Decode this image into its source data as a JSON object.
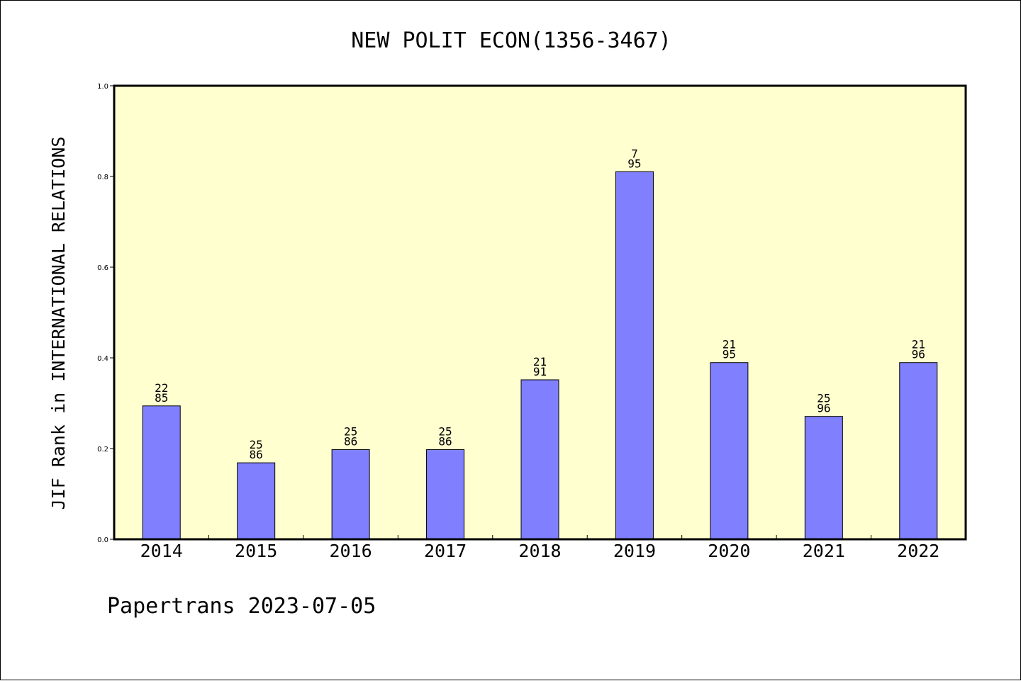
{
  "chart_data": {
    "type": "bar",
    "title": "NEW POLIT ECON(1356-3467)",
    "ylabel": "JIF Rank in INTERNATIONAL RELATIONS",
    "xlabel": "",
    "ylim": [
      0,
      1.0
    ],
    "yticks": [
      "0.0",
      "0.2",
      "0.4",
      "0.6",
      "0.8",
      "1.0"
    ],
    "categories": [
      "2014",
      "2015",
      "2016",
      "2017",
      "2018",
      "2019",
      "2020",
      "2021",
      "2022"
    ],
    "values": [
      0.2941,
      0.1686,
      0.1977,
      0.1977,
      0.3516,
      0.8105,
      0.3895,
      0.2708,
      0.3895
    ],
    "bar_labels": [
      {
        "rank": "22",
        "total": "85"
      },
      {
        "rank": "25",
        "total": "86"
      },
      {
        "rank": "25",
        "total": "86"
      },
      {
        "rank": "25",
        "total": "86"
      },
      {
        "rank": "21",
        "total": "91"
      },
      {
        "rank": "7",
        "total": "95"
      },
      {
        "rank": "21",
        "total": "95"
      },
      {
        "rank": "25",
        "total": "96"
      },
      {
        "rank": "21",
        "total": "96"
      }
    ],
    "grid": false,
    "colors": {
      "bar": "#8080ff",
      "plot_background": "#ffffd0",
      "axis": "#000000"
    }
  },
  "footer": {
    "credit": "Papertrans 2023-07-05"
  }
}
